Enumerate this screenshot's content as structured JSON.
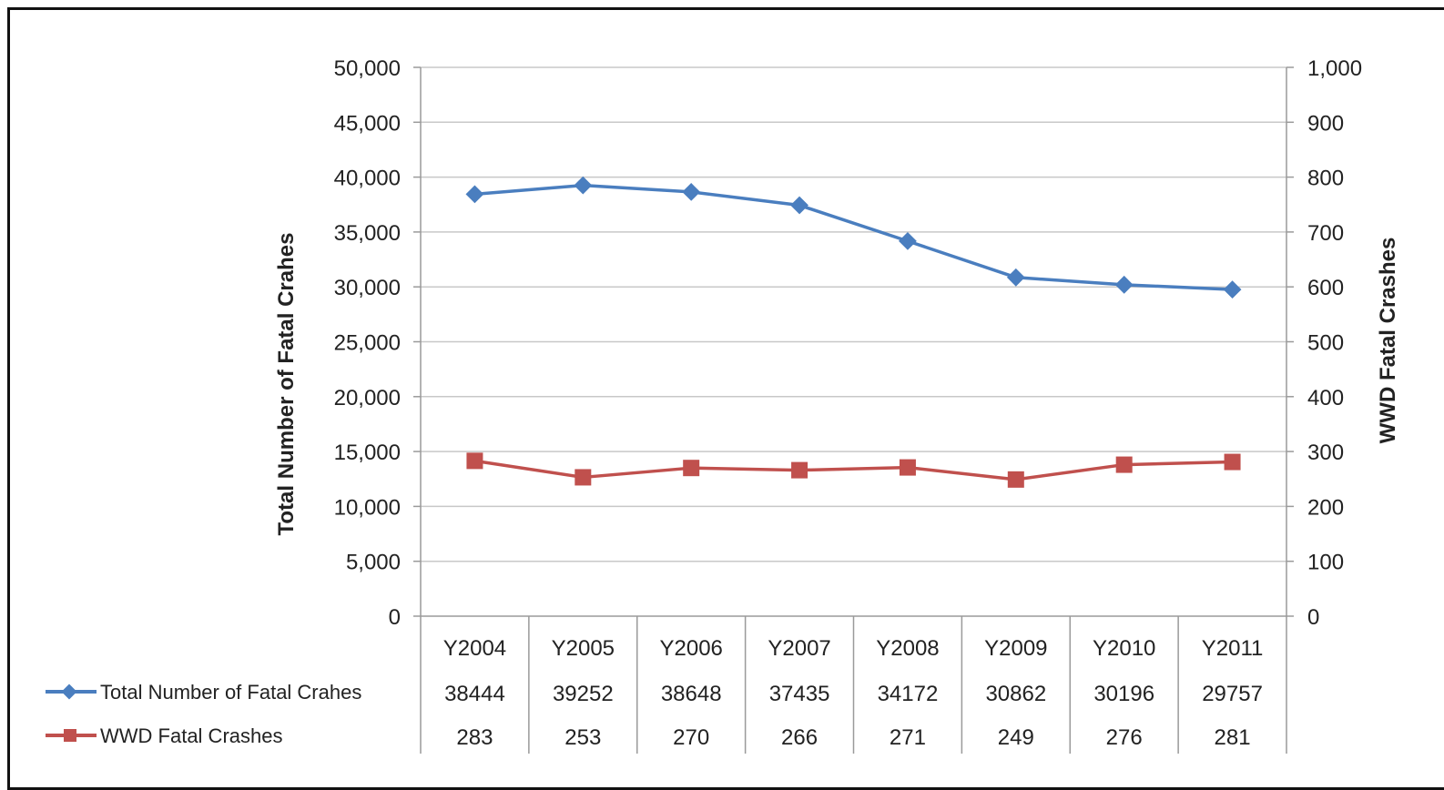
{
  "chart_data": {
    "type": "line",
    "categories": [
      "Y2004",
      "Y2005",
      "Y2006",
      "Y2007",
      "Y2008",
      "Y2009",
      "Y2010",
      "Y2011"
    ],
    "series": [
      {
        "name": "Total Number of Fatal Crahes",
        "axis": "left",
        "color": "#4a7ebf",
        "marker": "diamond",
        "values": [
          38444,
          39252,
          38648,
          37435,
          34172,
          30862,
          30196,
          29757
        ]
      },
      {
        "name": "WWD Fatal Crashes",
        "axis": "right",
        "color": "#c0504d",
        "marker": "square",
        "values": [
          283,
          253,
          270,
          266,
          271,
          249,
          276,
          281
        ]
      }
    ],
    "ylabel": "Total Number of Fatal Crahes",
    "y2label": "WWD Fatal Crashes",
    "ylim": [
      0,
      50000
    ],
    "y2lim": [
      0,
      1000
    ],
    "yticks": [
      "0",
      "5,000",
      "10,000",
      "15,000",
      "20,000",
      "25,000",
      "30,000",
      "35,000",
      "40,000",
      "45,000",
      "50,000"
    ],
    "y2ticks": [
      "0",
      "100",
      "200",
      "300",
      "400",
      "500",
      "600",
      "700",
      "800",
      "900",
      "1,000"
    ],
    "grid": true,
    "data_table": true
  }
}
